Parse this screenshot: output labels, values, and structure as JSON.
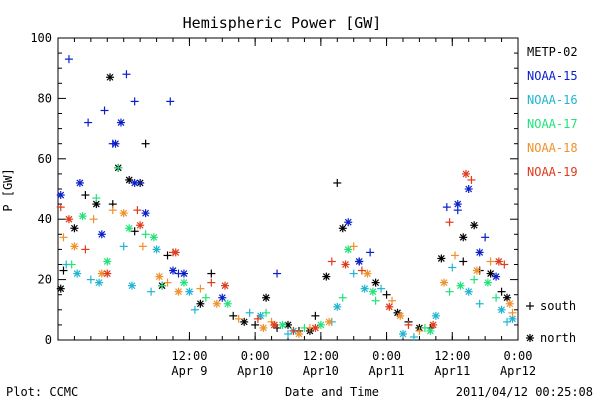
{
  "chart_data": {
    "type": "scatter",
    "title": "Hemispheric Power [GW]",
    "ylabel": "P [GW]",
    "xlabel": "Date and Time",
    "ylim": [
      0,
      100
    ],
    "yticks": [
      0,
      20,
      40,
      60,
      80,
      100
    ],
    "xlim": [
      "2011-04-08T12:00",
      "2011-04-12T00:00"
    ],
    "xticks": [
      {
        "t": "2011-04-09T12:00",
        "time": "12:00",
        "date": "Apr 9"
      },
      {
        "t": "2011-04-10T00:00",
        "time": "0:00",
        "date": "Apr10"
      },
      {
        "t": "2011-04-10T12:00",
        "time": "12:00",
        "date": "Apr10"
      },
      {
        "t": "2011-04-11T00:00",
        "time": "0:00",
        "date": "Apr11"
      },
      {
        "t": "2011-04-11T12:00",
        "time": "12:00",
        "date": "Apr11"
      },
      {
        "t": "2011-04-12T00:00",
        "time": "0:00",
        "date": "Apr12"
      }
    ],
    "grid": false,
    "legend_position": "right",
    "marker_legend": [
      {
        "symbol": "+",
        "label": "south"
      },
      {
        "symbol": "*",
        "label": "north"
      }
    ],
    "series": [
      {
        "name": "METP-02",
        "color": "#000000",
        "south": [
          [
            "2011-04-08T13:00",
            23
          ],
          [
            "2011-04-08T17:00",
            48
          ],
          [
            "2011-04-08T22:00",
            45
          ],
          [
            "2011-04-09T02:00",
            36
          ],
          [
            "2011-04-09T04:00",
            65
          ],
          [
            "2011-04-09T08:00",
            28
          ],
          [
            "2011-04-09T16:00",
            22
          ],
          [
            "2011-04-09T20:00",
            8
          ],
          [
            "2011-04-10T00:00",
            5
          ],
          [
            "2011-04-10T04:00",
            4
          ],
          [
            "2011-04-10T08:00",
            3
          ],
          [
            "2011-04-10T11:00",
            8
          ],
          [
            "2011-04-10T15:00",
            52
          ],
          [
            "2011-04-10T19:00",
            26
          ],
          [
            "2011-04-11T00:00",
            15
          ],
          [
            "2011-04-11T04:00",
            6
          ],
          [
            "2011-04-11T08:00",
            4
          ],
          [
            "2011-04-11T14:00",
            26
          ],
          [
            "2011-04-11T17:00",
            23
          ],
          [
            "2011-04-11T21:00",
            16
          ]
        ],
        "north": [
          [
            "2011-04-08T12:30",
            17
          ],
          [
            "2011-04-08T15:00",
            37
          ],
          [
            "2011-04-08T19:00",
            45
          ],
          [
            "2011-04-08T21:30",
            87
          ],
          [
            "2011-04-08T23:00",
            57
          ],
          [
            "2011-04-09T01:00",
            53
          ],
          [
            "2011-04-09T03:00",
            52
          ],
          [
            "2011-04-09T07:00",
            18
          ],
          [
            "2011-04-09T14:00",
            12
          ],
          [
            "2011-04-09T22:00",
            6
          ],
          [
            "2011-04-10T02:00",
            14
          ],
          [
            "2011-04-10T06:00",
            5
          ],
          [
            "2011-04-10T10:00",
            3
          ],
          [
            "2011-04-10T13:00",
            21
          ],
          [
            "2011-04-10T16:00",
            37
          ],
          [
            "2011-04-10T22:00",
            19
          ],
          [
            "2011-04-11T02:00",
            9
          ],
          [
            "2011-04-11T06:00",
            4
          ],
          [
            "2011-04-11T10:00",
            27
          ],
          [
            "2011-04-11T14:00",
            34
          ],
          [
            "2011-04-11T16:00",
            38
          ],
          [
            "2011-04-11T19:00",
            22
          ],
          [
            "2011-04-11T22:00",
            14
          ]
        ]
      },
      {
        "name": "NOAA-15",
        "color": "#0a1fcc",
        "south": [
          [
            "2011-04-08T14:00",
            93
          ],
          [
            "2011-04-08T17:30",
            72
          ],
          [
            "2011-04-08T20:30",
            76
          ],
          [
            "2011-04-08T22:00",
            65
          ],
          [
            "2011-04-09T00:30",
            88
          ],
          [
            "2011-04-09T02:00",
            79
          ],
          [
            "2011-04-09T03:00",
            52
          ],
          [
            "2011-04-09T08:30",
            79
          ],
          [
            "2011-04-09T10:00",
            22
          ],
          [
            "2011-04-10T04:00",
            22
          ],
          [
            "2011-04-10T21:00",
            29
          ],
          [
            "2011-04-11T11:00",
            44
          ],
          [
            "2011-04-11T13:00",
            43
          ],
          [
            "2011-04-11T18:00",
            34
          ]
        ],
        "north": [
          [
            "2011-04-08T12:30",
            48
          ],
          [
            "2011-04-08T16:00",
            52
          ],
          [
            "2011-04-08T20:00",
            35
          ],
          [
            "2011-04-08T22:30",
            65
          ],
          [
            "2011-04-08T23:30",
            72
          ],
          [
            "2011-04-09T02:00",
            52
          ],
          [
            "2011-04-09T04:00",
            42
          ],
          [
            "2011-04-09T09:00",
            23
          ],
          [
            "2011-04-09T11:00",
            22
          ],
          [
            "2011-04-09T18:00",
            14
          ],
          [
            "2011-04-10T17:00",
            39
          ],
          [
            "2011-04-10T19:00",
            26
          ],
          [
            "2011-04-11T13:00",
            45
          ],
          [
            "2011-04-11T15:00",
            50
          ],
          [
            "2011-04-11T17:00",
            29
          ],
          [
            "2011-04-11T20:00",
            21
          ]
        ]
      },
      {
        "name": "NOAA-16",
        "color": "#1fb4d2",
        "south": [
          [
            "2011-04-08T13:30",
            25
          ],
          [
            "2011-04-08T18:00",
            20
          ],
          [
            "2011-04-09T00:00",
            31
          ],
          [
            "2011-04-09T05:00",
            16
          ],
          [
            "2011-04-09T13:00",
            10
          ],
          [
            "2011-04-09T23:00",
            9
          ],
          [
            "2011-04-10T06:00",
            2
          ],
          [
            "2011-04-10T14:00",
            6
          ],
          [
            "2011-04-10T18:00",
            22
          ],
          [
            "2011-04-10T23:00",
            17
          ],
          [
            "2011-04-11T05:00",
            1
          ],
          [
            "2011-04-11T12:00",
            24
          ],
          [
            "2011-04-11T17:00",
            12
          ],
          [
            "2011-04-11T22:00",
            6
          ]
        ],
        "north": [
          [
            "2011-04-08T15:30",
            22
          ],
          [
            "2011-04-08T19:30",
            19
          ],
          [
            "2011-04-09T01:30",
            18
          ],
          [
            "2011-04-09T06:00",
            30
          ],
          [
            "2011-04-09T12:00",
            16
          ],
          [
            "2011-04-10T01:00",
            8
          ],
          [
            "2011-04-10T07:00",
            3
          ],
          [
            "2011-04-10T15:00",
            11
          ],
          [
            "2011-04-10T20:00",
            17
          ],
          [
            "2011-04-11T03:00",
            2
          ],
          [
            "2011-04-11T09:00",
            8
          ],
          [
            "2011-04-11T15:00",
            16
          ],
          [
            "2011-04-11T21:00",
            10
          ],
          [
            "2011-04-11T23:00",
            7
          ]
        ]
      },
      {
        "name": "NOAA-17",
        "color": "#22e27a",
        "south": [
          [
            "2011-04-08T14:30",
            25
          ],
          [
            "2011-04-08T19:00",
            47
          ],
          [
            "2011-04-08T23:00",
            57
          ],
          [
            "2011-04-09T04:00",
            35
          ],
          [
            "2011-04-09T07:00",
            18
          ],
          [
            "2011-04-09T15:00",
            14
          ],
          [
            "2011-04-10T02:00",
            9
          ],
          [
            "2011-04-10T09:00",
            4
          ],
          [
            "2011-04-10T16:00",
            14
          ],
          [
            "2011-04-10T22:00",
            13
          ],
          [
            "2011-04-11T07:00",
            4
          ],
          [
            "2011-04-11T11:30",
            16
          ],
          [
            "2011-04-11T16:00",
            20
          ],
          [
            "2011-04-11T20:00",
            14
          ]
        ],
        "north": [
          [
            "2011-04-08T16:30",
            41
          ],
          [
            "2011-04-08T21:00",
            26
          ],
          [
            "2011-04-09T01:00",
            37
          ],
          [
            "2011-04-09T05:30",
            34
          ],
          [
            "2011-04-09T11:00",
            19
          ],
          [
            "2011-04-09T19:00",
            12
          ],
          [
            "2011-04-10T05:00",
            5
          ],
          [
            "2011-04-10T12:00",
            5
          ],
          [
            "2011-04-10T17:00",
            30
          ],
          [
            "2011-04-10T21:30",
            16
          ],
          [
            "2011-04-11T08:00",
            3
          ],
          [
            "2011-04-11T13:30",
            18
          ],
          [
            "2011-04-11T18:30",
            19
          ]
        ]
      },
      {
        "name": "NOAA-18",
        "color": "#f0902a",
        "south": [
          [
            "2011-04-08T13:00",
            34
          ],
          [
            "2011-04-08T18:30",
            40
          ],
          [
            "2011-04-08T22:00",
            43
          ],
          [
            "2011-04-09T03:30",
            31
          ],
          [
            "2011-04-09T08:00",
            19
          ],
          [
            "2011-04-09T14:00",
            17
          ],
          [
            "2011-04-09T21:00",
            7
          ],
          [
            "2011-04-10T03:00",
            6
          ],
          [
            "2011-04-10T10:00",
            4
          ],
          [
            "2011-04-10T18:00",
            31
          ],
          [
            "2011-04-11T01:00",
            13
          ],
          [
            "2011-04-11T06:00",
            3
          ],
          [
            "2011-04-11T12:30",
            28
          ],
          [
            "2011-04-11T19:00",
            26
          ],
          [
            "2011-04-11T23:00",
            9
          ]
        ],
        "north": [
          [
            "2011-04-08T15:00",
            31
          ],
          [
            "2011-04-08T20:00",
            22
          ],
          [
            "2011-04-09T00:00",
            42
          ],
          [
            "2011-04-09T06:30",
            21
          ],
          [
            "2011-04-09T10:00",
            16
          ],
          [
            "2011-04-09T17:00",
            12
          ],
          [
            "2011-04-10T01:30",
            4
          ],
          [
            "2011-04-10T08:00",
            2
          ],
          [
            "2011-04-10T13:30",
            6
          ],
          [
            "2011-04-10T20:30",
            22
          ],
          [
            "2011-04-11T02:30",
            8
          ],
          [
            "2011-04-11T10:30",
            19
          ],
          [
            "2011-04-11T16:30",
            23
          ],
          [
            "2011-04-11T22:30",
            12
          ]
        ]
      },
      {
        "name": "NOAA-19",
        "color": "#e03a1a",
        "south": [
          [
            "2011-04-08T12:30",
            44
          ],
          [
            "2011-04-08T17:00",
            30
          ],
          [
            "2011-04-09T02:30",
            43
          ],
          [
            "2011-04-09T09:00",
            29
          ],
          [
            "2011-04-09T16:00",
            19
          ],
          [
            "2011-04-10T00:30",
            7
          ],
          [
            "2011-04-10T07:00",
            3
          ],
          [
            "2011-04-10T14:00",
            26
          ],
          [
            "2011-04-10T19:30",
            23
          ],
          [
            "2011-04-11T04:00",
            5
          ],
          [
            "2011-04-11T11:30",
            39
          ],
          [
            "2011-04-11T15:30",
            53
          ],
          [
            "2011-04-11T21:30",
            25
          ]
        ],
        "north": [
          [
            "2011-04-08T14:00",
            40
          ],
          [
            "2011-04-08T21:00",
            22
          ],
          [
            "2011-04-09T03:00",
            38
          ],
          [
            "2011-04-09T09:30",
            29
          ],
          [
            "2011-04-09T18:30",
            18
          ],
          [
            "2011-04-10T03:30",
            5
          ],
          [
            "2011-04-10T11:00",
            4
          ],
          [
            "2011-04-10T16:30",
            25
          ],
          [
            "2011-04-11T00:30",
            11
          ],
          [
            "2011-04-11T08:30",
            5
          ],
          [
            "2011-04-11T14:30",
            55
          ],
          [
            "2011-04-11T20:30",
            26
          ]
        ]
      }
    ],
    "footer_left": "Plot: CCMC",
    "footer_right": "2011/04/12 00:25:08"
  }
}
